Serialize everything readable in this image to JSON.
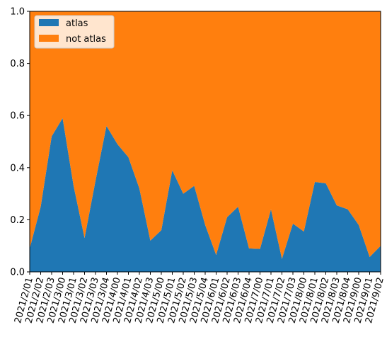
{
  "chart_data": {
    "type": "area",
    "stacked": true,
    "normalized": true,
    "categories": [
      "2021/2/01",
      "2021/2/02",
      "2021/2/03",
      "2021/3/00",
      "2021/3/01",
      "2021/3/02",
      "2021/3/03",
      "2021/3/04",
      "2021/4/00",
      "2021/4/01",
      "2021/4/02",
      "2021/4/03",
      "2021/5/00",
      "2021/5/01",
      "2021/5/02",
      "2021/5/03",
      "2021/5/04",
      "2021/6/01",
      "2021/6/02",
      "2021/6/03",
      "2021/6/04",
      "2021/7/00",
      "2021/7/01",
      "2021/7/02",
      "2021/7/03",
      "2021/8/00",
      "2021/8/01",
      "2021/8/02",
      "2021/8/03",
      "2021/8/04",
      "2021/9/00",
      "2021/9/01",
      "2021/9/02"
    ],
    "x_tick_labels": [
      "2021/2/01",
      "2021/2/02",
      "2021/2/03",
      "2021/3/00",
      "2021/3/01",
      "2021/3/02",
      "2021/3/03",
      "2021/3/04",
      "2021/4/00",
      "2021/4/01",
      "2021/4/02",
      "2021/4/03",
      "2021/5/00",
      "2021/5/01",
      "2021/5/02",
      "2021/5/03",
      "2021/5/04",
      "2021/6/01",
      "2021/6/02",
      "2021/6/03",
      "2021/6/04",
      "2021/7/00",
      "2021/7/01",
      "2021/7/02",
      "2021/7/03",
      "2021/8/00",
      "2021/8/01",
      "2021/8/02",
      "2021/8/03",
      "2021/8/04",
      "2021/9/00",
      "2021/9/01",
      "2021/9/02"
    ],
    "series": [
      {
        "name": "atlas",
        "color": "#1f77b4",
        "values": [
          0.09,
          0.25,
          0.52,
          0.59,
          0.33,
          0.13,
          0.35,
          0.56,
          0.49,
          0.44,
          0.32,
          0.12,
          0.16,
          0.39,
          0.3,
          0.33,
          0.18,
          0.065,
          0.21,
          0.25,
          0.09,
          0.088,
          0.24,
          0.05,
          0.185,
          0.155,
          0.345,
          0.34,
          0.255,
          0.24,
          0.18,
          0.057,
          0.1
        ]
      },
      {
        "name": "not atlas",
        "color": "#ff7f0e",
        "values": [
          0.91,
          0.75,
          0.48,
          0.41,
          0.67,
          0.87,
          0.65,
          0.44,
          0.51,
          0.56,
          0.68,
          0.88,
          0.84,
          0.61,
          0.7,
          0.67,
          0.82,
          0.935,
          0.79,
          0.75,
          0.91,
          0.912,
          0.76,
          0.95,
          0.815,
          0.845,
          0.655,
          0.66,
          0.745,
          0.76,
          0.82,
          0.943,
          0.9
        ]
      }
    ],
    "ylim": [
      0,
      1
    ],
    "y_ticks": [
      "0.0",
      "0.2",
      "0.4",
      "0.6",
      "0.8",
      "1.0"
    ],
    "legend_placement": "top-left",
    "grid": false,
    "title": "",
    "xlabel": "",
    "ylabel": ""
  }
}
